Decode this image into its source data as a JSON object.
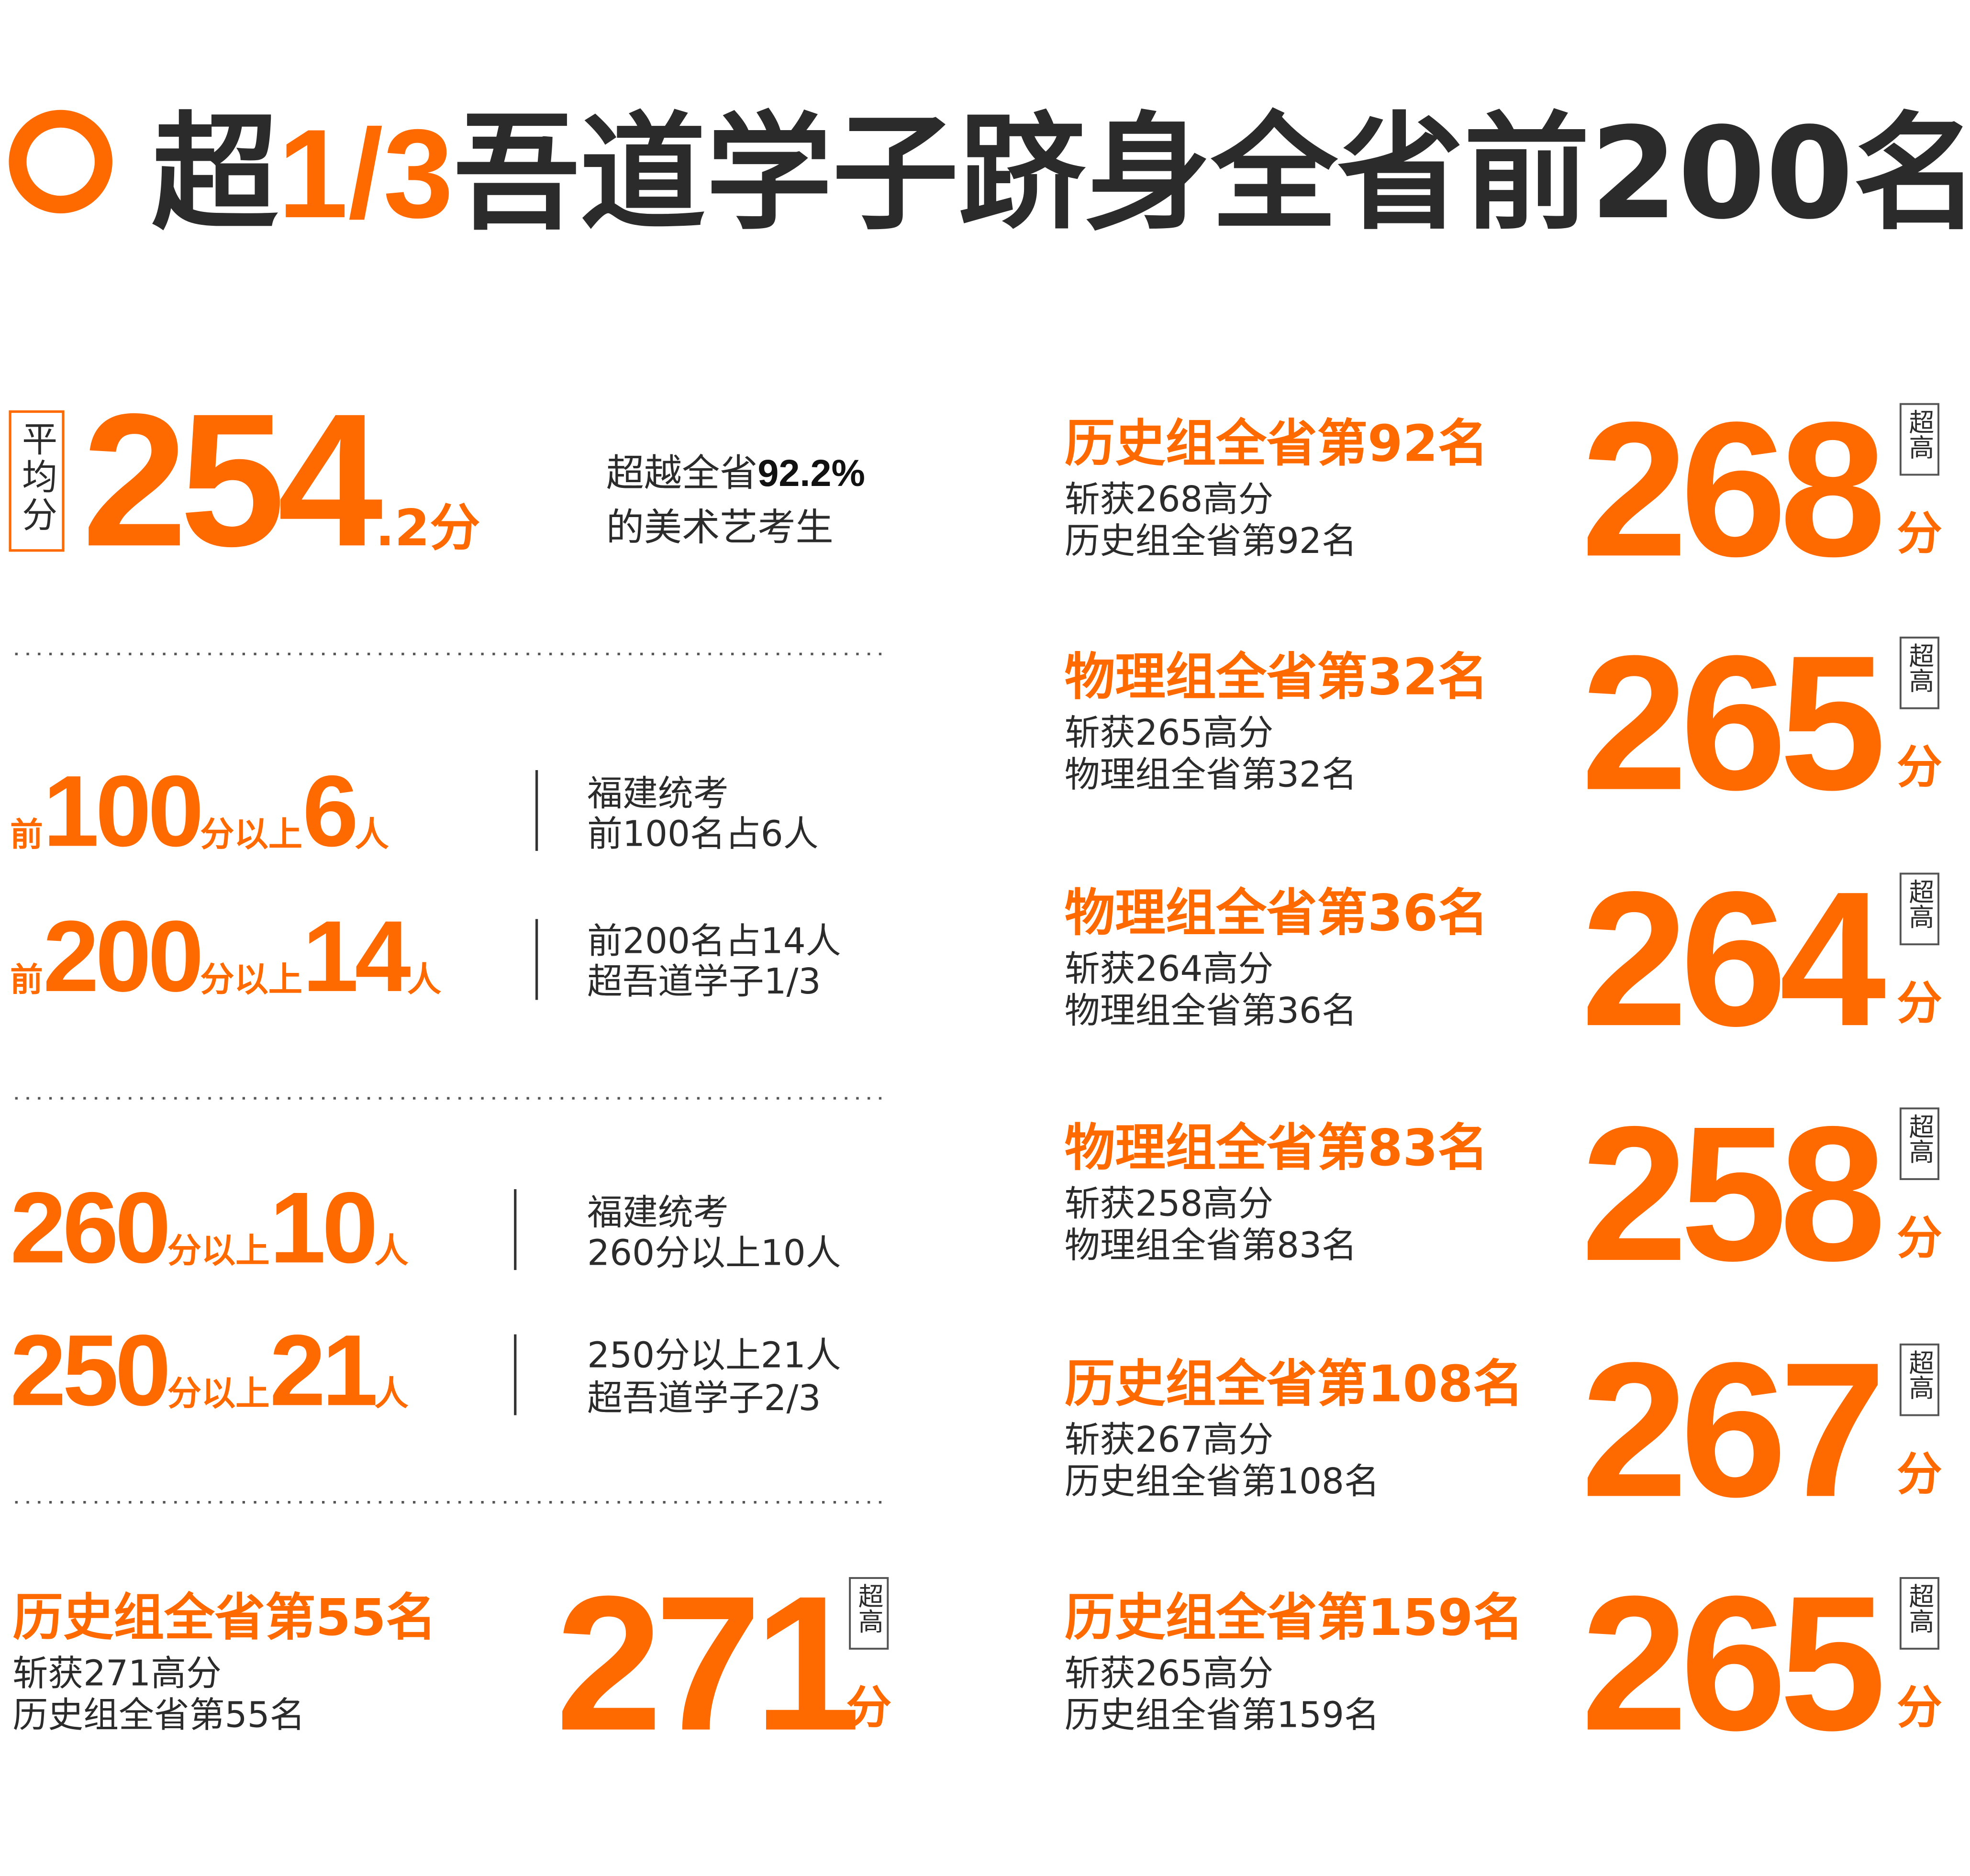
{
  "title": {
    "prefix": "超",
    "highlight": "1/3",
    "rest": "吾道学子跻身全省前200名"
  },
  "average": {
    "label": "平均分",
    "integer": "254",
    "decimal": ".2分",
    "note_text": "超越全省",
    "note_bold": "92.2%",
    "note_line2": "的美术艺考生"
  },
  "stats": [
    {
      "prefix": "前",
      "number": "100",
      "mid": "分以上",
      "count": "6",
      "unit": "人",
      "note": [
        "福建统考",
        "前100名占6人"
      ]
    },
    {
      "prefix": "前",
      "number": "200",
      "mid": "分以上",
      "count": "14",
      "unit": "人",
      "note": [
        "前200名占14人",
        "超吾道学子1/3"
      ]
    },
    {
      "number": "260",
      "mid": "分以上",
      "count": "10",
      "unit": "人",
      "note": [
        "福建统考",
        "260分以上10人"
      ]
    },
    {
      "number": "250",
      "mid": "分以上",
      "count": "21",
      "unit": "人",
      "note": [
        "250分以上21人",
        "超吾道学子2/3"
      ]
    }
  ],
  "featured": {
    "rank": "历史组全省第55名",
    "lines": [
      "斩获271高分",
      "历史组全省第55名"
    ],
    "score": "271",
    "badge": "超高",
    "unit": "分"
  },
  "students": [
    {
      "rank": "历史组全省第92名",
      "lines": [
        "斩获268高分",
        "历史组全省第92名"
      ],
      "score": "268",
      "badge": "超高",
      "unit": "分"
    },
    {
      "rank": "物理组全省第32名",
      "lines": [
        "斩获265高分",
        "物理组全省第32名"
      ],
      "score": "265",
      "badge": "超高",
      "unit": "分"
    },
    {
      "rank": "物理组全省第36名",
      "lines": [
        "斩获264高分",
        "物理组全省第36名"
      ],
      "score": "264",
      "badge": "超高",
      "unit": "分"
    },
    {
      "rank": "物理组全省第83名",
      "lines": [
        "斩获258高分",
        "物理组全省第83名"
      ],
      "score": "258",
      "badge": "超高",
      "unit": "分"
    },
    {
      "rank": "历史组全省第108名",
      "lines": [
        "斩获267高分",
        "历史组全省第108名"
      ],
      "score": "267",
      "badge": "超高",
      "unit": "分"
    },
    {
      "rank": "历史组全省第159名",
      "lines": [
        "斩获265高分",
        "历史组全省第159名"
      ],
      "score": "265",
      "badge": "超高",
      "unit": "分"
    }
  ]
}
